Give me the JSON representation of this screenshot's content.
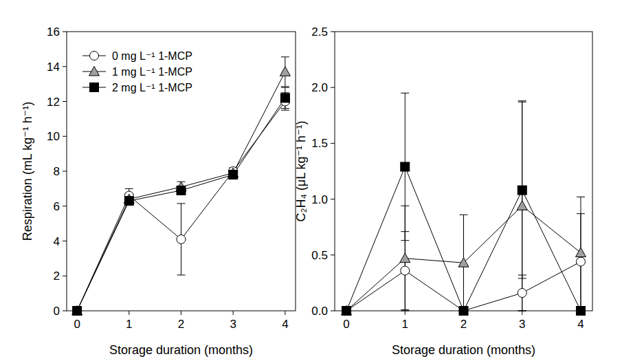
{
  "chart_data": [
    {
      "type": "line",
      "x": [
        0,
        1,
        2,
        3,
        4
      ],
      "xlim": [
        -0.2,
        4.2
      ],
      "xticks": [
        0,
        1,
        2,
        3,
        4
      ],
      "xlabel": "Storage duration (months)",
      "ylabel": "Respiration (mL kg⁻¹ h⁻¹)",
      "ylim": [
        0,
        16
      ],
      "yticks": [
        0,
        2,
        4,
        6,
        8,
        10,
        12,
        14,
        16
      ],
      "legend": "upper left",
      "series": [
        {
          "name": "0 mg L⁻¹ 1-MCP",
          "color": "#ffffff",
          "marker": "circle",
          "values": [
            0,
            6.6,
            4.1,
            8.0,
            12.0
          ],
          "errors": [
            0,
            0.4,
            2.05,
            0.2,
            0.5
          ]
        },
        {
          "name": "1 mg L⁻¹ 1-MCP",
          "color": "#a0a0a0",
          "marker": "triangle",
          "values": [
            0,
            6.4,
            7.1,
            7.9,
            13.7
          ],
          "errors": [
            0,
            0.3,
            0.3,
            0.2,
            0.85
          ]
        },
        {
          "name": "2 mg L⁻¹ 1-MCP",
          "color": "#000000",
          "marker": "square",
          "values": [
            0,
            6.3,
            6.9,
            7.8,
            12.2
          ],
          "errors": [
            0,
            0.2,
            0.2,
            0.2,
            0.6
          ]
        }
      ]
    },
    {
      "type": "line",
      "x": [
        0,
        1,
        2,
        3,
        4
      ],
      "xlim": [
        -0.2,
        4.2
      ],
      "xticks": [
        0,
        1,
        2,
        3,
        4
      ],
      "xlabel": "Storage duration (months)",
      "ylabel": "C₂H₄ (μL kg⁻¹ h⁻¹)",
      "ylim": [
        0,
        2.5
      ],
      "yticks": [
        {
          "value": 0,
          "label": "0.0"
        },
        0.5,
        {
          "value": 1,
          "label": "1.0"
        },
        1.5,
        {
          "value": 2,
          "label": "2.0"
        },
        2.5
      ],
      "series": [
        {
          "color": "#ffffff",
          "marker": "circle",
          "values": [
            0,
            0.36,
            0,
            0.16,
            0.44
          ],
          "errors": [
            0,
            0.35,
            0,
            0.16,
            0.43
          ]
        },
        {
          "color": "#a0a0a0",
          "marker": "triangle",
          "values": [
            0,
            0.47,
            0.43,
            0.94,
            0.52
          ],
          "errors": [
            0,
            0.47,
            0.43,
            0.94,
            0.5
          ]
        },
        {
          "color": "#000000",
          "marker": "square",
          "values": [
            0,
            1.29,
            0,
            1.08,
            0
          ],
          "errors": [
            0,
            0.66,
            0,
            0.79,
            0
          ]
        }
      ]
    }
  ]
}
